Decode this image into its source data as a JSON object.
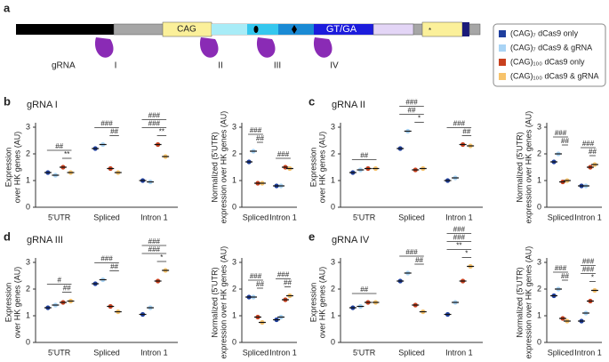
{
  "diagram": {
    "panel": "a",
    "segment_label": "CAG",
    "motif_label": "GT/GA",
    "grna_label": "gRNA",
    "grnas": [
      "I",
      "II",
      "III",
      "IV"
    ],
    "mark": "*"
  },
  "chart_data": [
    {
      "type": "dot",
      "panel": "b",
      "title": "gRNA I",
      "ylabel": [
        "Expression",
        "over HK genes (AU)"
      ],
      "categories": [
        "5'UTR",
        "Spliced",
        "Intron 1"
      ],
      "ylim": [
        0,
        3
      ],
      "yticks": [
        0,
        1,
        2,
        3
      ],
      "series": [
        {
          "name": "(CAG)₇ dCas9 only",
          "color": "#1f3f9e",
          "values": [
            1.3,
            2.2,
            1.0
          ]
        },
        {
          "name": "(CAG)₇ dCas9 & gRNA",
          "color": "#a9d4f5",
          "values": [
            1.2,
            2.35,
            0.95
          ]
        },
        {
          "name": "(CAG)₁₀₀ dCas9 only",
          "color": "#c8401e",
          "values": [
            1.5,
            1.45,
            2.35
          ]
        },
        {
          "name": "(CAG)₁₀₀ dCas9 & gRNA",
          "color": "#f7c36b",
          "values": [
            1.3,
            1.3,
            1.9
          ]
        }
      ],
      "annotations": [
        [
          "**",
          "##"
        ],
        [
          "##",
          "###"
        ],
        [
          "**",
          "###",
          "###"
        ]
      ]
    },
    {
      "type": "dot",
      "ylabel": [
        "Normalized (5'UTR)",
        "expression over HK genes (AU)"
      ],
      "categories": [
        "Spliced",
        "Intron 1"
      ],
      "ylim": [
        0,
        3
      ],
      "yticks": [
        0,
        1,
        2,
        3
      ],
      "series": [
        {
          "color": "#1f3f9e",
          "values": [
            1.7,
            0.8
          ]
        },
        {
          "color": "#a9d4f5",
          "values": [
            2.1,
            0.8
          ]
        },
        {
          "color": "#c8401e",
          "values": [
            0.9,
            1.5
          ]
        },
        {
          "color": "#f7c36b",
          "values": [
            0.9,
            1.45
          ]
        }
      ],
      "annotations": [
        [
          "##",
          "###"
        ],
        [
          "###"
        ]
      ]
    },
    {
      "type": "dot",
      "panel": "c",
      "title": "gRNA II",
      "ylabel": [
        "Expression",
        "over HK genes (AU)"
      ],
      "categories": [
        "5'UTR",
        "Spliced",
        "Intron 1"
      ],
      "ylim": [
        0,
        3
      ],
      "yticks": [
        0,
        1,
        2,
        3
      ],
      "series": [
        {
          "color": "#1f3f9e",
          "values": [
            1.3,
            2.2,
            1.0
          ]
        },
        {
          "color": "#a9d4f5",
          "values": [
            1.4,
            2.85,
            1.1
          ]
        },
        {
          "color": "#c8401e",
          "values": [
            1.45,
            1.4,
            2.35
          ]
        },
        {
          "color": "#f7c36b",
          "values": [
            1.45,
            1.45,
            2.3
          ]
        }
      ],
      "annotations": [
        [
          "##"
        ],
        [
          "*",
          "##",
          "###"
        ],
        [
          "##",
          "###"
        ]
      ]
    },
    {
      "type": "dot",
      "ylabel": [
        "Normalized (5'UTR)",
        "expression over HK genes (AU)"
      ],
      "categories": [
        "Spliced",
        "Intron 1"
      ],
      "ylim": [
        0,
        3
      ],
      "yticks": [
        0,
        1,
        2,
        3
      ],
      "series": [
        {
          "color": "#1f3f9e",
          "values": [
            1.7,
            0.8
          ]
        },
        {
          "color": "#a9d4f5",
          "values": [
            2.0,
            0.8
          ]
        },
        {
          "color": "#c8401e",
          "values": [
            0.95,
            1.5
          ]
        },
        {
          "color": "#f7c36b",
          "values": [
            1.0,
            1.6
          ]
        }
      ],
      "annotations": [
        [
          "##",
          "###"
        ],
        [
          "##",
          "###"
        ]
      ]
    },
    {
      "type": "dot",
      "panel": "d",
      "title": "gRNA III",
      "ylabel": [
        "Expression",
        "over HK genes (AU)"
      ],
      "categories": [
        "5'UTR",
        "Spliced",
        "Intron 1"
      ],
      "ylim": [
        0,
        3
      ],
      "yticks": [
        0,
        1,
        2,
        3
      ],
      "series": [
        {
          "color": "#1f3f9e",
          "values": [
            1.3,
            2.2,
            1.05
          ]
        },
        {
          "color": "#a9d4f5",
          "values": [
            1.4,
            2.35,
            1.3
          ]
        },
        {
          "color": "#c8401e",
          "values": [
            1.5,
            1.35,
            2.3
          ]
        },
        {
          "color": "#f7c36b",
          "values": [
            1.55,
            1.15,
            2.7
          ]
        }
      ],
      "annotations": [
        [
          "##",
          "#"
        ],
        [
          "##",
          "###"
        ],
        [
          "*",
          "###",
          "###"
        ]
      ]
    },
    {
      "type": "dot",
      "ylabel": [
        "Normalized (5'UTR)",
        "expression over HK genes (AU)"
      ],
      "categories": [
        "Spliced",
        "Intron 1"
      ],
      "ylim": [
        0,
        3
      ],
      "yticks": [
        0,
        1,
        2,
        3
      ],
      "series": [
        {
          "color": "#1f3f9e",
          "values": [
            1.7,
            0.85
          ]
        },
        {
          "color": "#a9d4f5",
          "values": [
            1.7,
            0.95
          ]
        },
        {
          "color": "#c8401e",
          "values": [
            0.95,
            1.6
          ]
        },
        {
          "color": "#f7c36b",
          "values": [
            0.75,
            1.75
          ]
        }
      ],
      "annotations": [
        [
          "##",
          "###"
        ],
        [
          "##",
          "###"
        ]
      ]
    },
    {
      "type": "dot",
      "panel": "e",
      "title": "gRNA IV",
      "ylabel": [
        "Expression",
        "over HK genes (AU)"
      ],
      "categories": [
        "5'UTR",
        "Spliced",
        "Intron 1"
      ],
      "ylim": [
        0,
        3
      ],
      "yticks": [
        0,
        1,
        2,
        3
      ],
      "series": [
        {
          "color": "#1f3f9e",
          "values": [
            1.3,
            2.3,
            1.05
          ]
        },
        {
          "color": "#a9d4f5",
          "values": [
            1.35,
            2.6,
            1.5
          ]
        },
        {
          "color": "#c8401e",
          "values": [
            1.5,
            1.4,
            2.3
          ]
        },
        {
          "color": "#f7c36b",
          "values": [
            1.5,
            1.15,
            2.85
          ]
        }
      ],
      "annotations": [
        [
          "##"
        ],
        [
          "##",
          "###"
        ],
        [
          "*",
          "**",
          "###",
          "###"
        ]
      ]
    },
    {
      "type": "dot",
      "ylabel": [
        "Normalized (5'UTR)",
        "expression over HK genes (AU)"
      ],
      "categories": [
        "Spliced",
        "Intron 1"
      ],
      "ylim": [
        0,
        3
      ],
      "yticks": [
        0,
        1,
        2,
        3
      ],
      "series": [
        {
          "color": "#1f3f9e",
          "values": [
            1.75,
            0.8
          ]
        },
        {
          "color": "#a9d4f5",
          "values": [
            2.0,
            1.1
          ]
        },
        {
          "color": "#c8401e",
          "values": [
            0.9,
            1.55
          ]
        },
        {
          "color": "#f7c36b",
          "values": [
            0.8,
            1.95
          ]
        }
      ],
      "annotations": [
        [
          "##",
          "###"
        ],
        [
          "*",
          "###",
          "###"
        ]
      ]
    }
  ]
}
